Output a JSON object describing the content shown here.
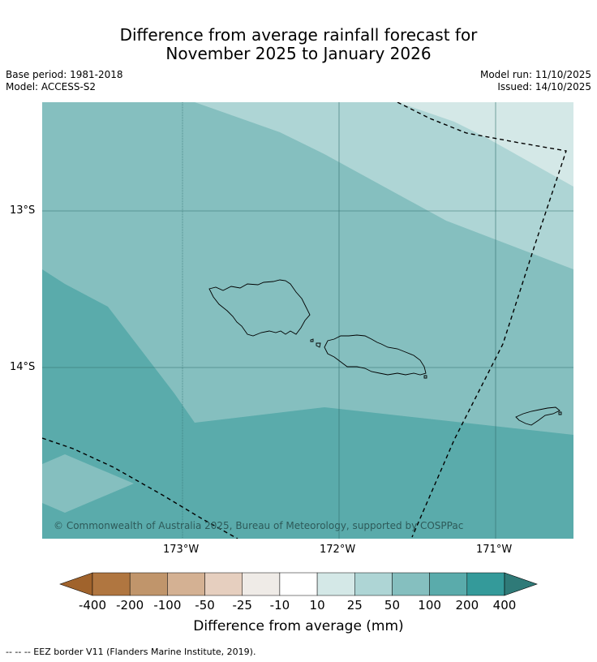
{
  "header": {
    "title_line1": "Difference from average rainfall forecast for",
    "title_line2": "November 2025 to January 2026",
    "base_period": "Base period: 1981-2018",
    "model": "Model: ACCESS-S2",
    "model_run": "Model run: 11/10/2025",
    "issued": "Issued: 14/10/2025"
  },
  "map": {
    "lat_labels": [
      "13°S",
      "14°S"
    ],
    "lon_labels": [
      "173°W",
      "172°W",
      "171°W"
    ],
    "copyright": "© Commonwealth of Australia 2025, Bureau of Meteorology, supported by COSPPac"
  },
  "colorbar": {
    "labels": [
      "-400",
      "-200",
      "-100",
      "-50",
      "-25",
      "-10",
      "10",
      "25",
      "50",
      "100",
      "200",
      "400"
    ],
    "colors": [
      "#a0632c",
      "#b07640",
      "#c0956b",
      "#d4b193",
      "#e6cfbf",
      "#efebe7",
      "#ffffff",
      "#d4e8e7",
      "#aed5d5",
      "#85bfbf",
      "#5aabab",
      "#349a9a",
      "#2f7a78"
    ],
    "title": "Difference from average (mm)"
  },
  "footnote": "-- -- -- EEZ border V11 (Flanders Marine Institute, 2019)."
}
